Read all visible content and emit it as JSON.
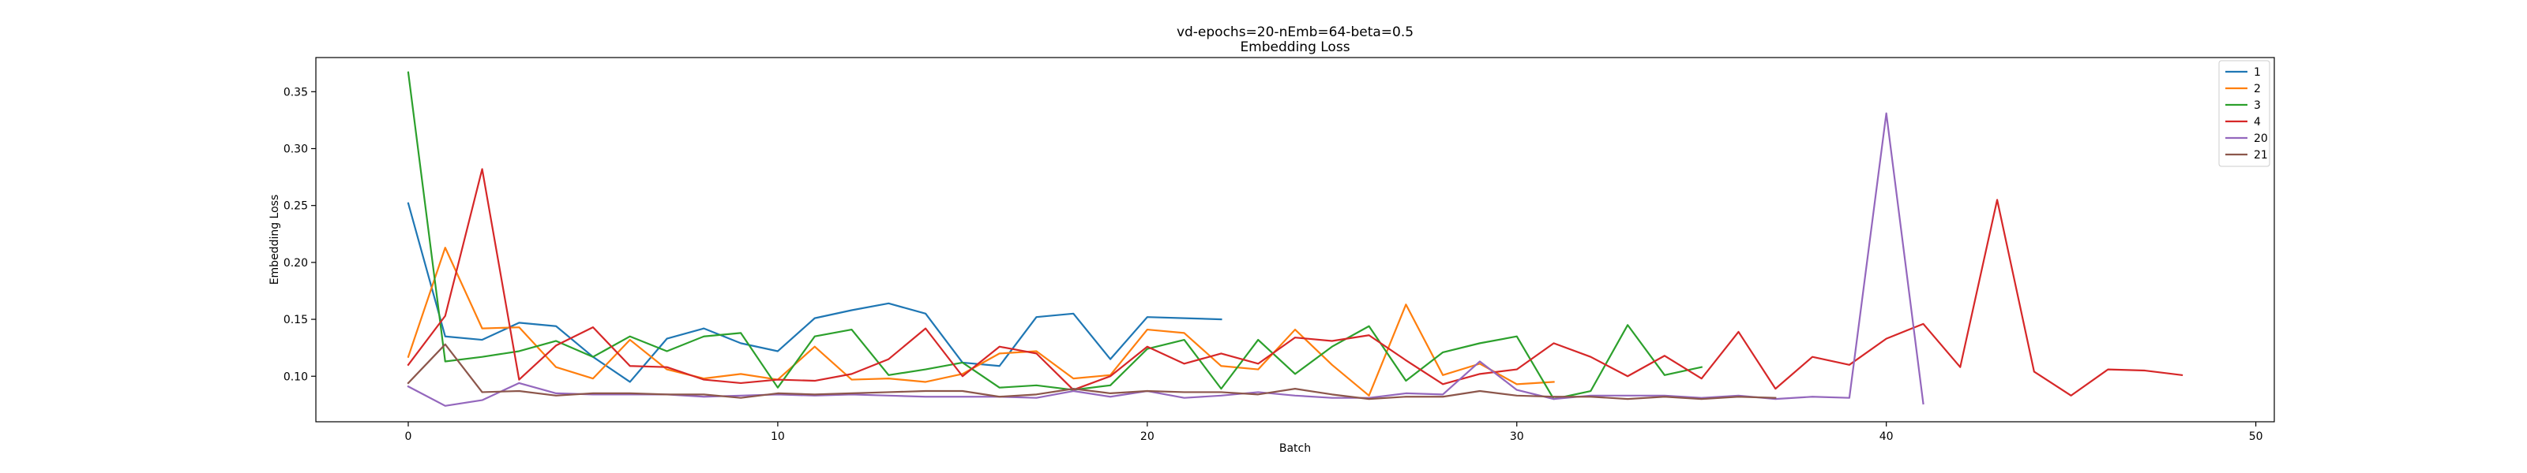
{
  "chart_data": {
    "type": "line",
    "title": "vd-epochs=20-nEmb=64-beta=0.5",
    "subtitle": "Embedding Loss",
    "xlabel": "Batch",
    "ylabel": "Embedding Loss",
    "xlim": [
      -2.5,
      50.5
    ],
    "ylim": [
      0.06,
      0.38
    ],
    "xticks": [
      0,
      10,
      20,
      30,
      40,
      50
    ],
    "yticks": [
      0.1,
      0.15,
      0.2,
      0.25,
      0.3,
      0.35
    ],
    "ytick_labels": [
      "0.10",
      "0.15",
      "0.20",
      "0.25",
      "0.30",
      "0.35"
    ],
    "grid": false,
    "legend_position": "top-right",
    "series": [
      {
        "name": "1",
        "color": "#1f77b4",
        "values": [
          0.252,
          0.135,
          0.132,
          0.147,
          0.144,
          0.117,
          0.095,
          0.133,
          0.142,
          0.129,
          0.122,
          0.151,
          0.158,
          0.164,
          0.155,
          0.112,
          0.109,
          0.152,
          0.155,
          0.115,
          0.152,
          0.151,
          0.15
        ]
      },
      {
        "name": "2",
        "color": "#ff7f0e",
        "values": [
          0.117,
          0.213,
          0.142,
          0.143,
          0.108,
          0.098,
          0.132,
          0.106,
          0.098,
          0.102,
          0.097,
          0.126,
          0.097,
          0.098,
          0.095,
          0.102,
          0.12,
          0.122,
          0.098,
          0.101,
          0.141,
          0.138,
          0.109,
          0.106,
          0.141,
          0.11,
          0.083,
          0.163,
          0.101,
          0.111,
          0.093,
          0.095
        ]
      },
      {
        "name": "3",
        "color": "#2ca02c",
        "values": [
          0.367,
          0.113,
          0.117,
          0.122,
          0.131,
          0.117,
          0.135,
          0.122,
          0.135,
          0.138,
          0.09,
          0.135,
          0.141,
          0.101,
          0.106,
          0.112,
          0.09,
          0.092,
          0.088,
          0.092,
          0.124,
          0.132,
          0.089,
          0.132,
          0.102,
          0.126,
          0.144,
          0.096,
          0.121,
          0.129,
          0.135,
          0.08,
          0.087,
          0.145,
          0.101,
          0.108
        ]
      },
      {
        "name": "4",
        "color": "#d62728",
        "values": [
          0.11,
          0.153,
          0.282,
          0.097,
          0.127,
          0.143,
          0.109,
          0.108,
          0.097,
          0.094,
          0.097,
          0.096,
          0.102,
          0.115,
          0.142,
          0.1,
          0.126,
          0.12,
          0.088,
          0.1,
          0.126,
          0.111,
          0.12,
          0.111,
          0.134,
          0.131,
          0.136,
          0.114,
          0.093,
          0.102,
          0.106,
          0.129,
          0.117,
          0.1,
          0.118,
          0.098,
          0.139,
          0.089,
          0.117,
          0.11,
          0.133,
          0.146,
          0.108,
          0.255,
          0.104,
          0.083,
          0.106,
          0.105,
          0.101
        ]
      },
      {
        "name": "20",
        "color": "#9467bd",
        "values": [
          0.091,
          0.074,
          0.079,
          0.094,
          0.085,
          0.084,
          0.084,
          0.084,
          0.082,
          0.083,
          0.084,
          0.083,
          0.084,
          0.083,
          0.082,
          0.082,
          0.082,
          0.081,
          0.087,
          0.082,
          0.087,
          0.081,
          0.083,
          0.086,
          0.083,
          0.081,
          0.081,
          0.085,
          0.084,
          0.113,
          0.088,
          0.08,
          0.083,
          0.083,
          0.083,
          0.081,
          0.083,
          0.08,
          0.082,
          0.081,
          0.331,
          0.076
        ]
      },
      {
        "name": "21",
        "color": "#8c564b",
        "values": [
          0.094,
          0.128,
          0.086,
          0.087,
          0.083,
          0.085,
          0.085,
          0.084,
          0.084,
          0.081,
          0.085,
          0.084,
          0.085,
          0.086,
          0.087,
          0.087,
          0.082,
          0.084,
          0.089,
          0.085,
          0.087,
          0.086,
          0.086,
          0.084,
          0.089,
          0.084,
          0.08,
          0.082,
          0.082,
          0.087,
          0.083,
          0.082,
          0.082,
          0.08,
          0.082,
          0.08,
          0.082,
          0.081
        ]
      }
    ]
  }
}
